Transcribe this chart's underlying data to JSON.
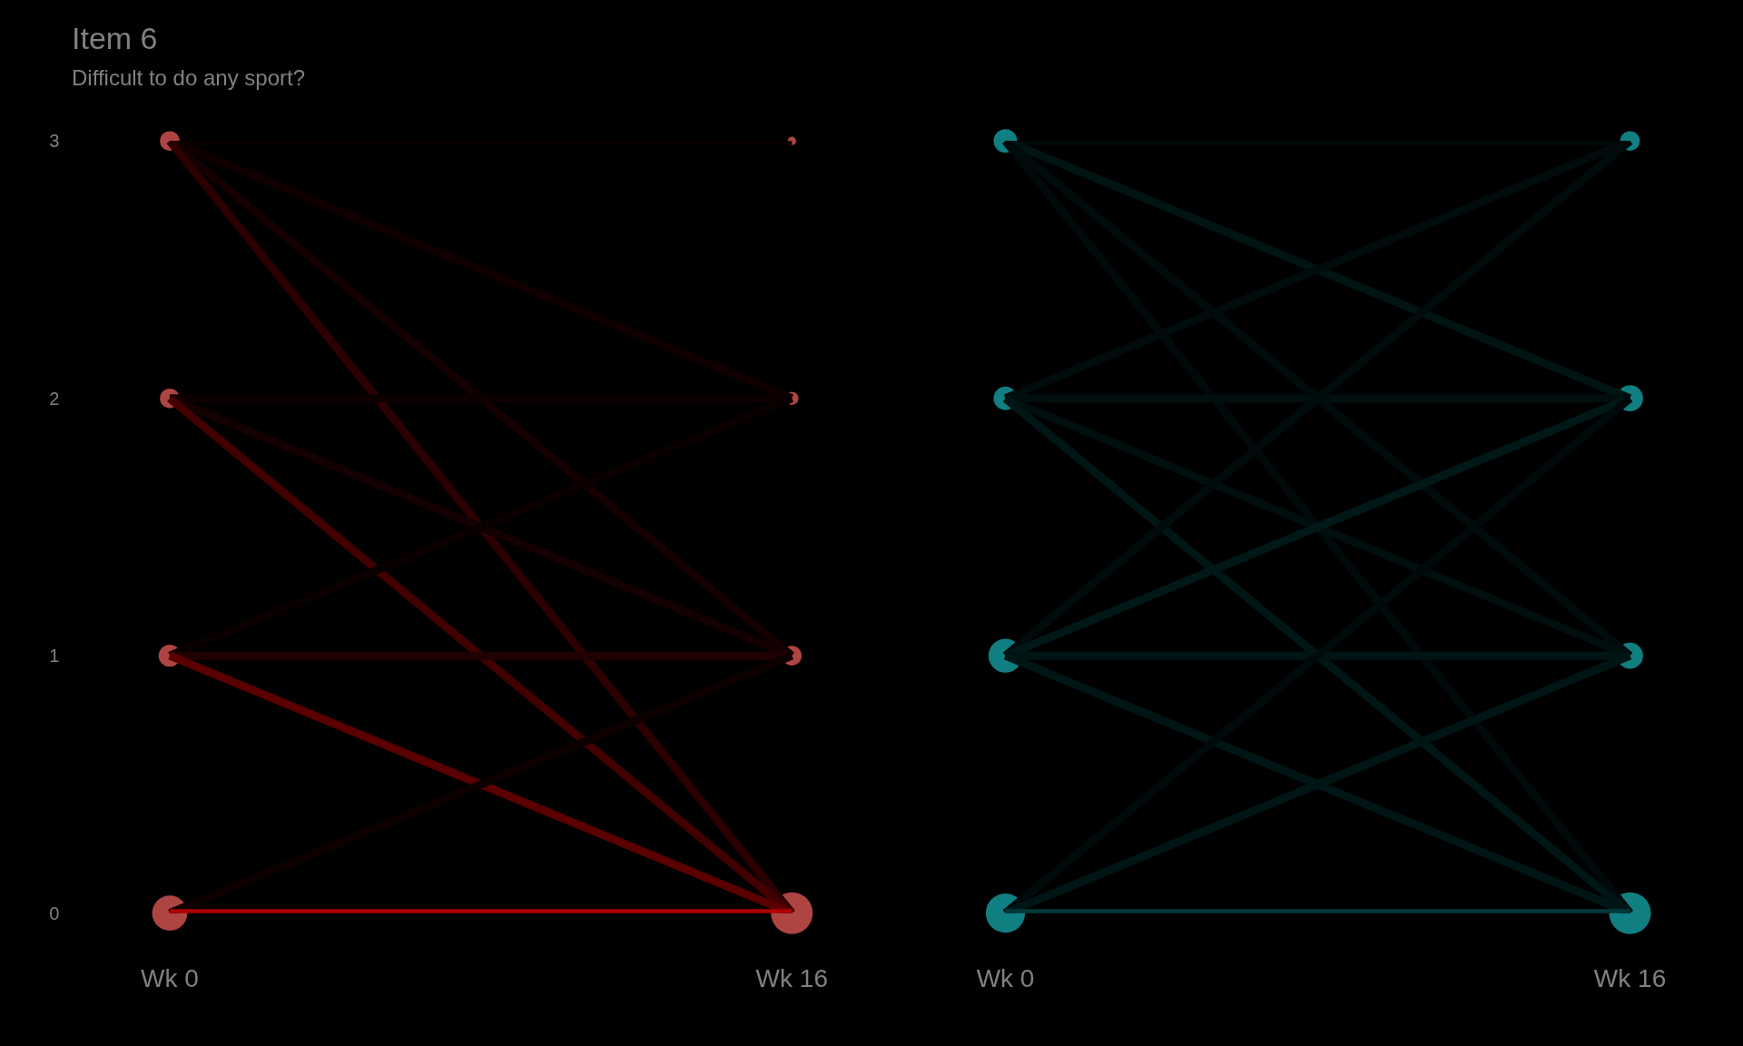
{
  "chart_data": [
    {
      "type": "line",
      "title": "Item 6",
      "subtitle": "Difficult to do any sport?",
      "categories": [
        "Wk 0",
        "Wk 16"
      ],
      "ylim": [
        0,
        3
      ],
      "yticks": [
        0,
        1,
        2,
        3
      ],
      "series": [
        {
          "color": "#0a0000",
          "values": [
            3,
            3
          ]
        },
        {
          "color": "#100000",
          "values": [
            3,
            2
          ]
        },
        {
          "color": "#140000",
          "values": [
            3,
            1
          ]
        },
        {
          "color": "#2c0000",
          "values": [
            3,
            0
          ]
        },
        {
          "color": "#0d0000",
          "values": [
            2,
            2
          ]
        },
        {
          "color": "#140000",
          "values": [
            2,
            1
          ]
        },
        {
          "color": "#420000",
          "values": [
            2,
            0
          ]
        },
        {
          "color": "#0a0000",
          "values": [
            1,
            2
          ]
        },
        {
          "color": "#200000",
          "values": [
            1,
            1
          ]
        },
        {
          "color": "#5a0000",
          "values": [
            1,
            0
          ]
        },
        {
          "color": "#0c0000",
          "values": [
            0,
            1
          ]
        },
        {
          "color": "#b00000",
          "values": [
            0,
            0
          ]
        },
        {
          "type": "bubble",
          "color": "#f8635f",
          "x": [
            "Wk 0",
            "Wk 0",
            "Wk 0",
            "Wk 0"
          ],
          "values": [
            3,
            2,
            1,
            0
          ],
          "sizes": [
            0.22,
            0.22,
            0.28,
            0.71
          ]
        },
        {
          "type": "bubble",
          "color": "#f8635f",
          "x": [
            "Wk 16",
            "Wk 16",
            "Wk 16",
            "Wk 16"
          ],
          "values": [
            3,
            2,
            1,
            0
          ],
          "sizes": [
            0.04,
            0.1,
            0.22,
            1
          ]
        }
      ]
    },
    {
      "type": "line",
      "categories": [
        "Wk 0",
        "Wk 16"
      ],
      "ylim": [
        0,
        3
      ],
      "yticks": [
        0,
        1,
        2,
        3
      ],
      "tick_labels": "x",
      "series": [
        {
          "color": "#000a0a",
          "values": [
            3,
            3
          ]
        },
        {
          "color": "#001414",
          "values": [
            3,
            2
          ]
        },
        {
          "color": "#000c0c",
          "values": [
            3,
            1
          ]
        },
        {
          "color": "#000a0a",
          "values": [
            3,
            0
          ]
        },
        {
          "color": "#000c0c",
          "values": [
            2,
            3
          ]
        },
        {
          "color": "#000e0e",
          "values": [
            2,
            2
          ]
        },
        {
          "color": "#000e0e",
          "values": [
            2,
            1
          ]
        },
        {
          "color": "#001616",
          "values": [
            2,
            0
          ]
        },
        {
          "color": "#000c0c",
          "values": [
            1,
            3
          ]
        },
        {
          "color": "#001818",
          "values": [
            1,
            2
          ]
        },
        {
          "color": "#001414",
          "values": [
            1,
            1
          ]
        },
        {
          "color": "#001616",
          "values": [
            1,
            0
          ]
        },
        {
          "color": "#000a0a",
          "values": [
            0,
            2
          ]
        },
        {
          "color": "#001616",
          "values": [
            0,
            1
          ]
        },
        {
          "color": "#003a3a",
          "values": [
            0,
            0
          ]
        },
        {
          "type": "bubble",
          "color": "#17b5b8",
          "x": [
            "Wk 0",
            "Wk 0",
            "Wk 0",
            "Wk 0"
          ],
          "values": [
            3,
            2,
            1,
            0
          ],
          "sizes": [
            0.32,
            0.32,
            0.66,
            0.88
          ]
        },
        {
          "type": "bubble",
          "color": "#17b5b8",
          "x": [
            "Wk 16",
            "Wk 16",
            "Wk 16",
            "Wk 16"
          ],
          "values": [
            3,
            2,
            1,
            0
          ],
          "sizes": [
            0.22,
            0.39,
            0.39,
            1
          ]
        }
      ]
    }
  ]
}
